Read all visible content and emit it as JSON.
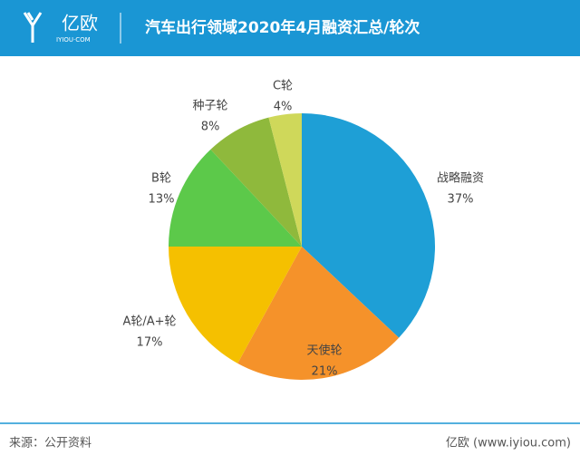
{
  "header": {
    "logo": "亿欧",
    "logo_sub": "IYIOU·COM"
  },
  "chart_data": {
    "type": "pie",
    "title": "汽车出行领域2020年4月融资汇总/轮次",
    "categories": [
      "战略融资",
      "天使轮",
      "A轮/A+轮",
      "B轮",
      "种子轮",
      "C轮"
    ],
    "values": [
      37,
      21,
      17,
      13,
      8,
      4
    ],
    "value_labels": [
      "37%",
      "21%",
      "17%",
      "13%",
      "8%",
      "4%"
    ],
    "colors": [
      "#1e9fd6",
      "#f5922a",
      "#f5c000",
      "#5cc94a",
      "#8fb93c",
      "#cfd85a"
    ]
  },
  "footer": {
    "source": "来源：公开资料",
    "brand": "亿欧 (www.iyiou.com)"
  }
}
